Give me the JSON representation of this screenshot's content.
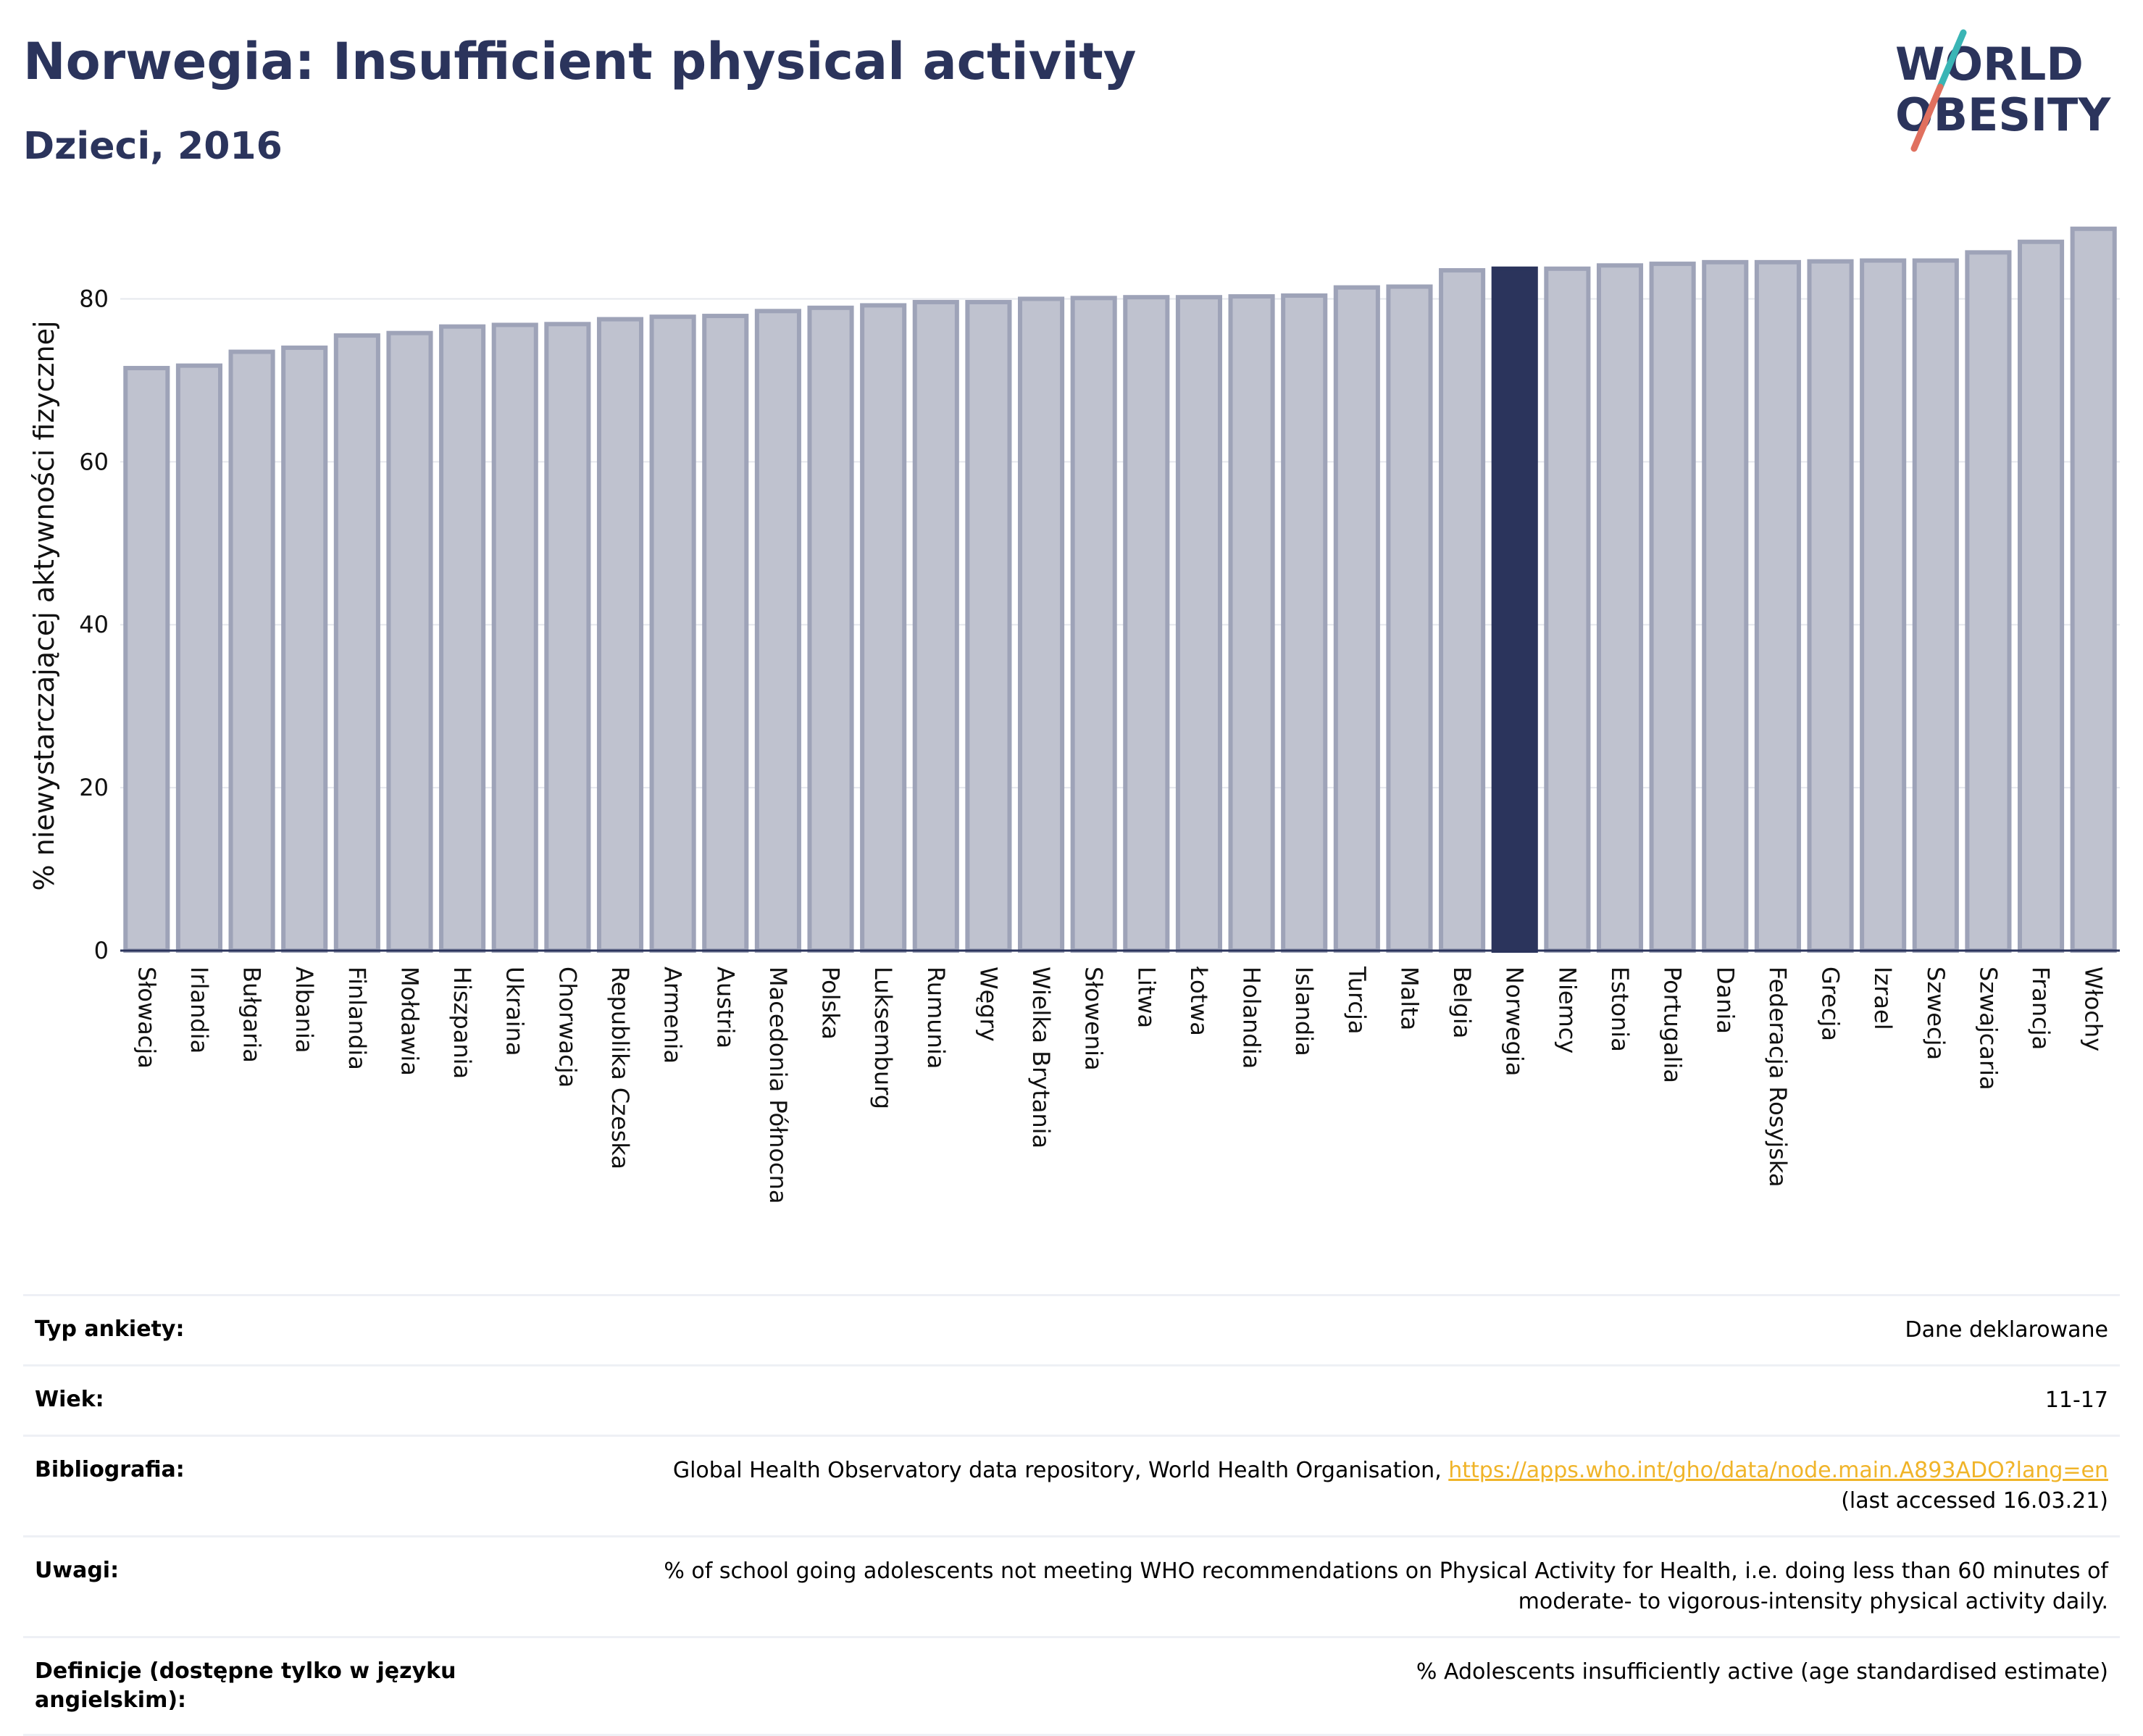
{
  "header": {
    "title": "Norwegia: Insufficient physical activity",
    "subtitle": "Dzieci, 2016"
  },
  "logo": {
    "line1": "WORLD",
    "line2": "OBESITY"
  },
  "colors": {
    "bar": "#bfc2cf",
    "bar_stroke": "#9ea3b8",
    "highlight": "#2b345c",
    "title": "#2b345c",
    "logo_slash_top": "#3ab5b5",
    "logo_slash_bottom": "#e0705f"
  },
  "chart_data": {
    "type": "bar",
    "title": "",
    "xlabel": "",
    "ylabel": "% niewystarczającej aktywności fizycznej",
    "ylim": [
      0,
      90
    ],
    "yticks": [
      0,
      20,
      40,
      60,
      80
    ],
    "grid": true,
    "highlight": "Norwegia",
    "categories": [
      "Słowacja",
      "Irlandia",
      "Bułgaria",
      "Albania",
      "Finlandia",
      "Mołdawia",
      "Hiszpania",
      "Ukraina",
      "Chorwacja",
      "Republika Czeska",
      "Armenia",
      "Austria",
      "Macedonia Północna",
      "Polska",
      "Luksemburg",
      "Rumunia",
      "Węgry",
      "Wielka Brytania",
      "Słowenia",
      "Litwa",
      "Łotwa",
      "Holandia",
      "Islandia",
      "Turcja",
      "Malta",
      "Belgia",
      "Norwegia",
      "Niemcy",
      "Estonia",
      "Portugalia",
      "Dania",
      "Federacja Rosyjska",
      "Grecja",
      "Izrael",
      "Szwecja",
      "Szwajcaria",
      "Francja",
      "Włochy"
    ],
    "values": [
      71.5,
      71.8,
      73.5,
      74.0,
      75.5,
      75.8,
      76.6,
      76.8,
      76.9,
      77.5,
      77.8,
      77.9,
      78.5,
      78.9,
      79.2,
      79.6,
      79.6,
      80.0,
      80.1,
      80.2,
      80.2,
      80.3,
      80.4,
      81.4,
      81.5,
      83.5,
      83.7,
      83.7,
      84.1,
      84.3,
      84.5,
      84.5,
      84.6,
      84.7,
      84.7,
      85.7,
      87.0,
      88.6
    ]
  },
  "info_table": [
    {
      "label": "Typ ankiety:",
      "value": "Dane deklarowane"
    },
    {
      "label": "Wiek:",
      "value": "11-17"
    },
    {
      "label": "Bibliografia:",
      "value_prefix": "Global Health Observatory data repository, World Health Organisation, ",
      "link": "https://apps.who.int/gho/data/node.main.A893ADO?lang=en",
      "value_suffix": "(last accessed 16.03.21)"
    },
    {
      "label": "Uwagi:",
      "value": "% of school going adolescents not meeting WHO recommendations on Physical Activity for Health, i.e. doing less than 60 minutes of moderate- to vigorous-intensity physical activity daily."
    },
    {
      "label": "Definicje (dostępne tylko w języku angielskim):",
      "value": "% Adolescents insufficiently active (age standardised estimate)"
    }
  ]
}
